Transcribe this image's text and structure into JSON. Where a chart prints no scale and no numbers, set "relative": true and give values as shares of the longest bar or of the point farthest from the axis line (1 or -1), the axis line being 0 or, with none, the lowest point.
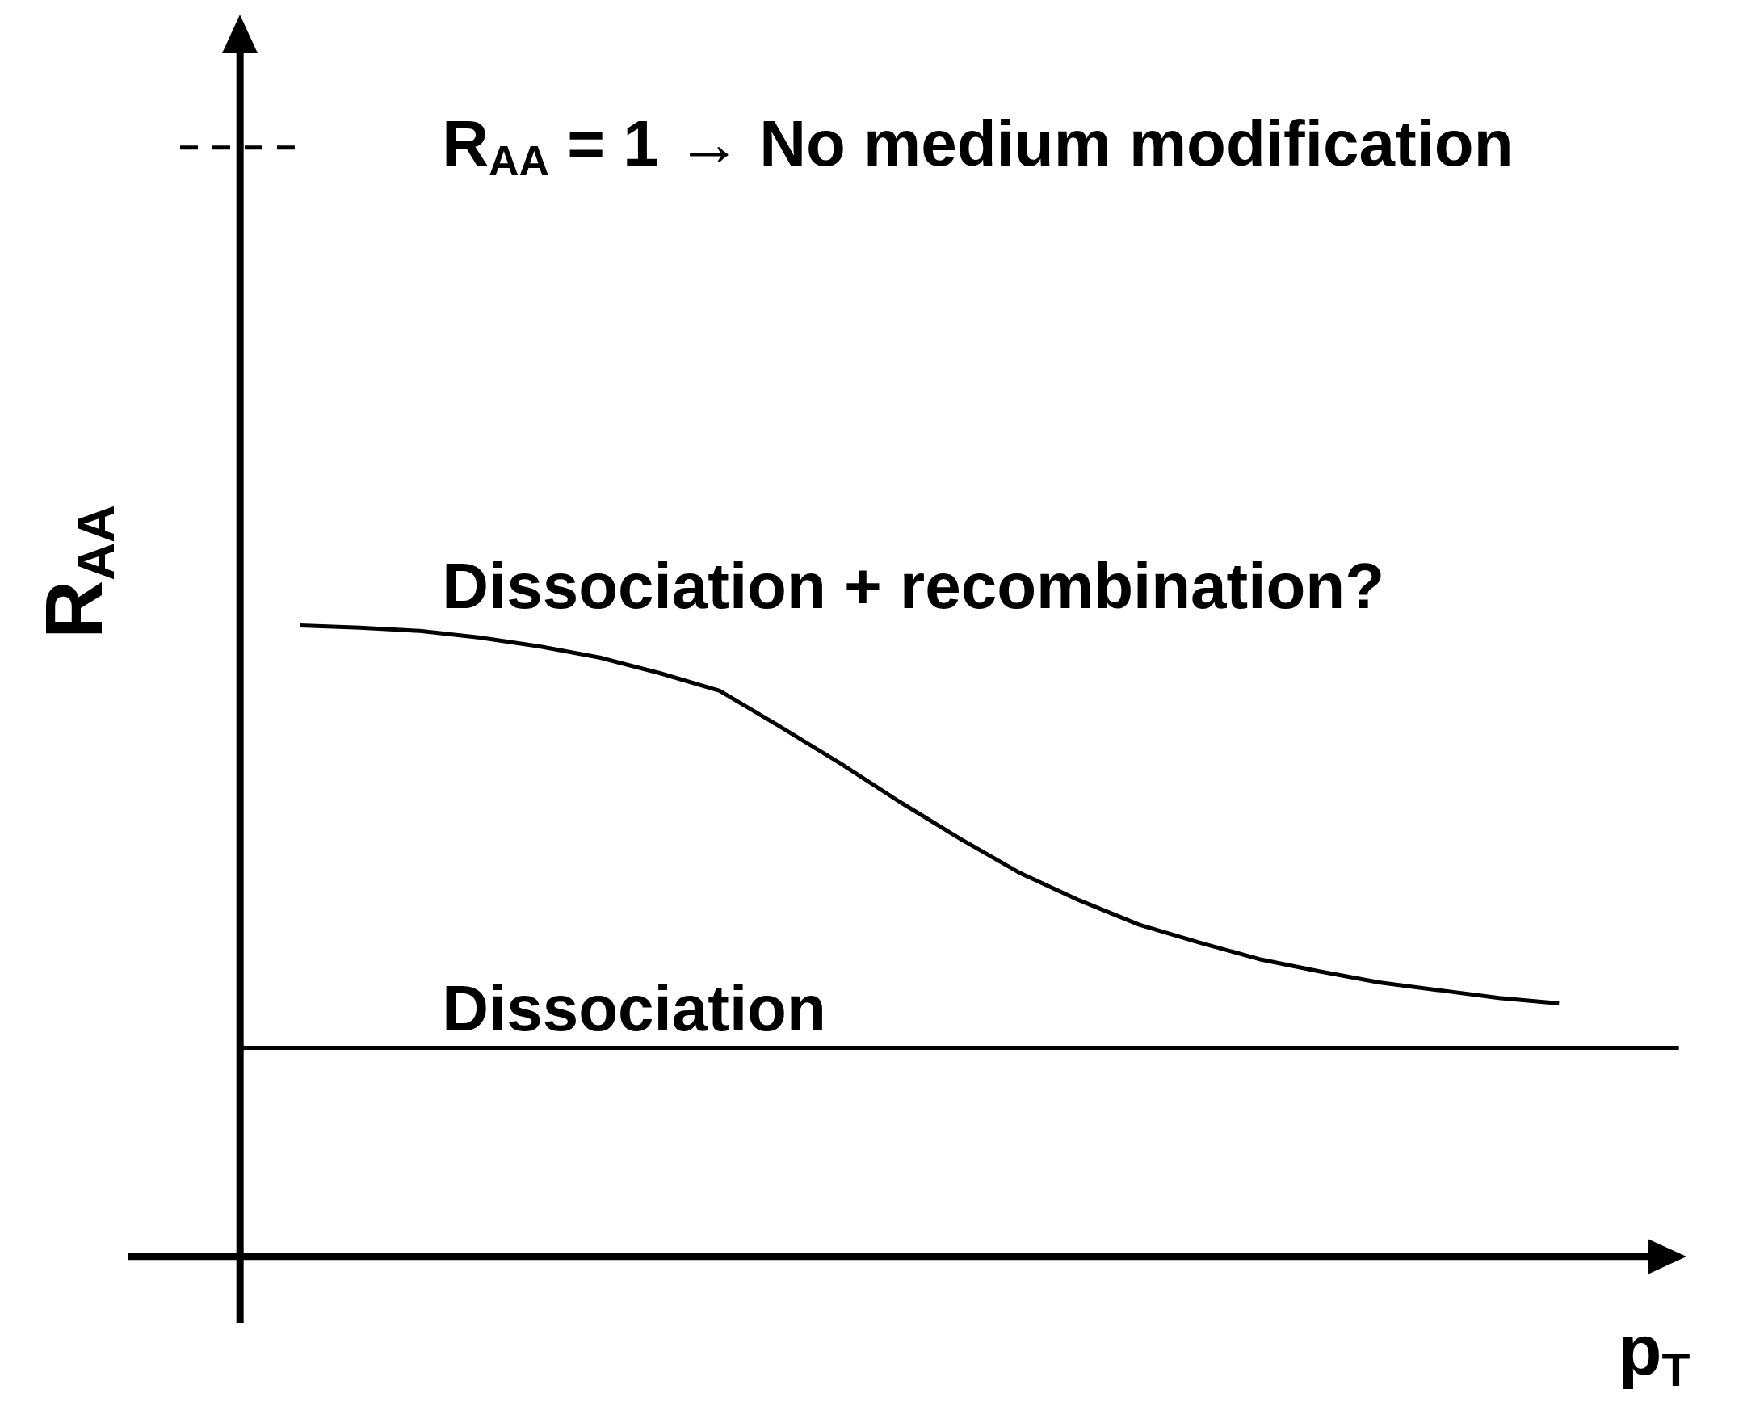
{
  "chart_data": {
    "type": "line",
    "relative": true,
    "xlabel": "p$_{T}$",
    "ylabel": "R$_{AA}$",
    "tick_labels": false,
    "grid": false,
    "legend": false,
    "marker": "none",
    "categories": [
      null,
      null,
      null,
      null,
      null,
      null,
      null,
      null,
      null,
      null,
      null,
      null,
      null,
      null,
      null,
      null,
      null,
      null,
      null,
      null,
      null,
      null,
      null,
      null,
      null,
      null
    ],
    "series": [
      {
        "color": "#000000",
        "line_style": "dashed",
        "values": [
          1,
          1,
          1,
          null,
          null,
          null,
          null,
          null,
          null,
          null,
          null,
          null,
          null,
          null,
          null,
          null,
          null,
          null,
          null,
          null,
          null,
          null,
          null,
          null,
          null,
          null
        ]
      },
      {
        "color": "#000000",
        "values": [
          null,
          null,
          0.569,
          0.567,
          0.564,
          0.558,
          0.55,
          0.54,
          0.526,
          0.51,
          0.478,
          0.445,
          0.41,
          0.377,
          0.346,
          0.321,
          0.299,
          0.283,
          0.268,
          0.257,
          0.247,
          0.24,
          0.233,
          0.228,
          null,
          null
        ]
      },
      {
        "color": "#000000",
        "values": [
          null,
          0.188,
          0.188,
          0.188,
          0.188,
          0.188,
          0.188,
          0.188,
          0.188,
          0.188,
          0.188,
          0.188,
          0.188,
          0.188,
          0.188,
          0.188,
          0.188,
          0.188,
          0.188,
          0.188,
          0.188,
          0.188,
          0.188,
          0.188,
          0.188,
          0.188
        ]
      }
    ],
    "annotations": [
      "R$_{AA}$ = 1 → No medium modification",
      "Dissociation + recombination?",
      "Dissociation"
    ]
  }
}
